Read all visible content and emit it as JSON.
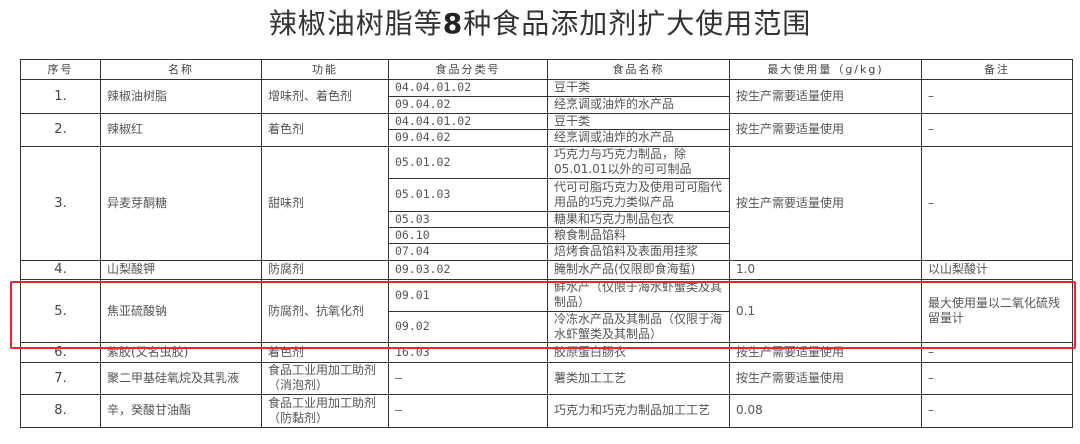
{
  "title": {
    "before": "辣椒油树脂等",
    "bold": "8",
    "after": "种食品添加剂扩大使用范围"
  },
  "headers": [
    "序号",
    "名称",
    "功能",
    "食品分类号",
    "食品名称",
    "最大使用量（g/kg)",
    "备注"
  ],
  "rows": [
    {
      "no": "1.",
      "name": "辣椒油树脂",
      "func": "增味剂、着色剂",
      "subs": [
        {
          "code": "04.04.01.02",
          "food": "豆干类"
        },
        {
          "code": "09.04.02",
          "food": "经烹调或油炸的水产品"
        }
      ],
      "max": "按生产需要适量使用",
      "note": "–"
    },
    {
      "no": "2.",
      "name": "辣椒红",
      "func": "着色剂",
      "subs": [
        {
          "code": "04.04.01.02",
          "food": "豆干类"
        },
        {
          "code": "09.04.02",
          "food": "经烹调或油炸的水产品"
        }
      ],
      "max": "按生产需要适量使用",
      "note": "–"
    },
    {
      "no": "3.",
      "name": "异麦芽酮糖",
      "func": "甜味剂",
      "subs": [
        {
          "code": "05.01.02",
          "food": "巧克力与巧克力制品，除05.01.01以外的可可制品"
        },
        {
          "code": "05.01.03",
          "food": "代可可脂巧克力及使用可可脂代用品的巧克力类似产品"
        },
        {
          "code": "05.03",
          "food": "糖果和巧克力制品包衣"
        },
        {
          "code": "06.10",
          "food": "粮食制品馅料"
        },
        {
          "code": "07.04",
          "food": "焙烤食品馅料及表面用挂浆"
        }
      ],
      "max": "按生产需要适量使用",
      "note": "–"
    },
    {
      "no": "4.",
      "name": "山梨酸钾",
      "func": "防腐剂",
      "subs": [
        {
          "code": "09.03.02",
          "food": "腌制水产品(仅限即食海蜇)"
        }
      ],
      "max": "1.0",
      "note": "以山梨酸计"
    },
    {
      "no": "5.",
      "name": "焦亚硫酸钠",
      "func": "防腐剂、抗氧化剂",
      "subs": [
        {
          "code": "09.01",
          "food": "鲜水产（仅限于海水虾蟹类及其制品）"
        },
        {
          "code": "09.02",
          "food": "冷冻水产品及其制品（仅限于海水虾蟹类及其制品）"
        }
      ],
      "max": "0.1",
      "note": "最大使用量以二氧化硫残留量计",
      "highlighted": true
    },
    {
      "no": "6.",
      "name": "紫胶(又名虫胶)",
      "func": "着色剂",
      "subs": [
        {
          "code": "16.03",
          "food": "胶原蛋白肠衣"
        }
      ],
      "max": "按生产需要适量使用",
      "note": "–"
    },
    {
      "no": "7.",
      "name": "聚二甲基硅氧烷及其乳液",
      "func": "食品工业用加工助剂（消泡剂）",
      "subs": [
        {
          "code": "–",
          "food": "薯类加工工艺"
        }
      ],
      "max": "按生产需要适量使用",
      "note": "–"
    },
    {
      "no": "8.",
      "name": "辛，癸酸甘油酯",
      "func": "食品工业用加工助剂（防黏剂）",
      "subs": [
        {
          "code": "–",
          "food": "巧克力和巧克力制品加工工艺"
        }
      ],
      "max": "0.08",
      "note": "–"
    }
  ],
  "colors": {
    "highlight": "#e8262b",
    "border": "#333333",
    "text": "#555555"
  }
}
